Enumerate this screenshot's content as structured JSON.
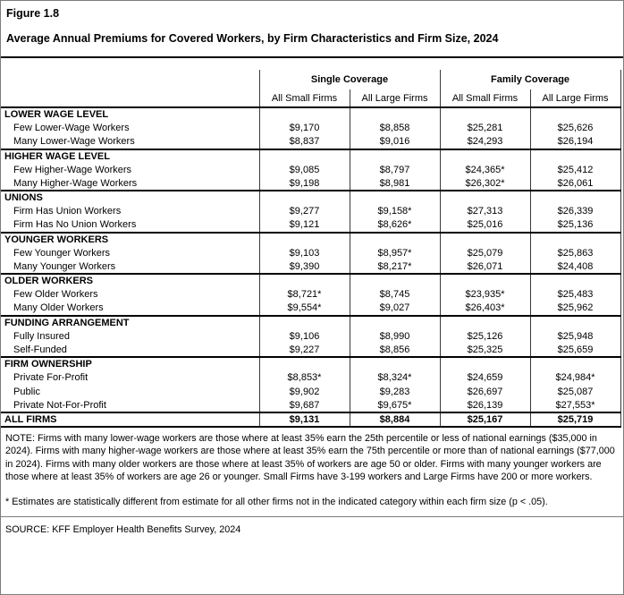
{
  "figure": {
    "label": "Figure 1.8",
    "title": "Average Annual Premiums for Covered Workers, by Firm Characteristics and Firm Size, 2024"
  },
  "colors": {
    "background": "#ffffff",
    "text": "#000000",
    "grid_line": "#3a3a3a",
    "section_rule": "#000000",
    "outer_border": "#7d7d7d"
  },
  "chart_data": {
    "type": "table",
    "title": "Average Annual Premiums for Covered Workers, by Firm Characteristics and Firm Size, 2024",
    "column_groups": [
      {
        "label": "Single Coverage",
        "span": 2
      },
      {
        "label": "Family Coverage",
        "span": 2
      }
    ],
    "columns": [
      "All Small Firms",
      "All Large Firms",
      "All Small Firms",
      "All Large Firms"
    ],
    "sections": [
      {
        "header": "LOWER WAGE LEVEL",
        "rows": [
          {
            "label": "Few Lower-Wage Workers",
            "values": [
              "$9,170",
              "$8,858",
              "$25,281",
              "$25,626"
            ]
          },
          {
            "label": "Many Lower-Wage Workers",
            "values": [
              "$8,837",
              "$9,016",
              "$24,293",
              "$26,194"
            ]
          }
        ]
      },
      {
        "header": "HIGHER WAGE LEVEL",
        "rows": [
          {
            "label": "Few Higher-Wage Workers",
            "values": [
              "$9,085",
              "$8,797",
              "$24,365*",
              "$25,412"
            ]
          },
          {
            "label": "Many Higher-Wage Workers",
            "values": [
              "$9,198",
              "$8,981",
              "$26,302*",
              "$26,061"
            ]
          }
        ]
      },
      {
        "header": "UNIONS",
        "rows": [
          {
            "label": "Firm Has Union Workers",
            "values": [
              "$9,277",
              "$9,158*",
              "$27,313",
              "$26,339"
            ]
          },
          {
            "label": "Firm Has No Union Workers",
            "values": [
              "$9,121",
              "$8,626*",
              "$25,016",
              "$25,136"
            ]
          }
        ]
      },
      {
        "header": "YOUNGER WORKERS",
        "rows": [
          {
            "label": "Few Younger Workers",
            "values": [
              "$9,103",
              "$8,957*",
              "$25,079",
              "$25,863"
            ]
          },
          {
            "label": "Many Younger Workers",
            "values": [
              "$9,390",
              "$8,217*",
              "$26,071",
              "$24,408"
            ]
          }
        ]
      },
      {
        "header": "OLDER WORKERS",
        "rows": [
          {
            "label": "Few Older Workers",
            "values": [
              "$8,721*",
              "$8,745",
              "$23,935*",
              "$25,483"
            ]
          },
          {
            "label": "Many Older Workers",
            "values": [
              "$9,554*",
              "$9,027",
              "$26,403*",
              "$25,962"
            ]
          }
        ]
      },
      {
        "header": "FUNDING ARRANGEMENT",
        "rows": [
          {
            "label": "Fully Insured",
            "values": [
              "$9,106",
              "$8,990",
              "$25,126",
              "$25,948"
            ]
          },
          {
            "label": "Self-Funded",
            "values": [
              "$9,227",
              "$8,856",
              "$25,325",
              "$25,659"
            ]
          }
        ]
      },
      {
        "header": "FIRM OWNERSHIP",
        "rows": [
          {
            "label": "Private For-Profit",
            "values": [
              "$8,853*",
              "$8,324*",
              "$24,659",
              "$24,984*"
            ]
          },
          {
            "label": "Public",
            "values": [
              "$9,902",
              "$9,283",
              "$26,697",
              "$25,087"
            ]
          },
          {
            "label": "Private Not-For-Profit",
            "values": [
              "$9,687",
              "$9,675*",
              "$26,139",
              "$27,553*"
            ]
          }
        ]
      }
    ],
    "total_row": {
      "label": "ALL FIRMS",
      "values": [
        "$9,131",
        "$8,884",
        "$25,167",
        "$25,719"
      ]
    }
  },
  "notes": {
    "note": "NOTE: Firms with many lower-wage workers are those where at least 35% earn the 25th percentile or less of national earnings ($35,000 in 2024). Firms with many higher-wage workers are those where at least 35% earn the 75th percentile or more than of national earnings ($77,000 in 2024). Firms with many older workers are those where at least 35% of workers are age 50 or older. Firms with many younger workers are those where at least 35% of workers are age 26 or younger. Small Firms have 3-199 workers and Large Firms have 200 or more workers.",
    "asterisk": "* Estimates are statistically different from estimate for all other firms not in the indicated category within each firm size (p < .05).",
    "source": "SOURCE: KFF Employer Health Benefits Survey, 2024"
  }
}
